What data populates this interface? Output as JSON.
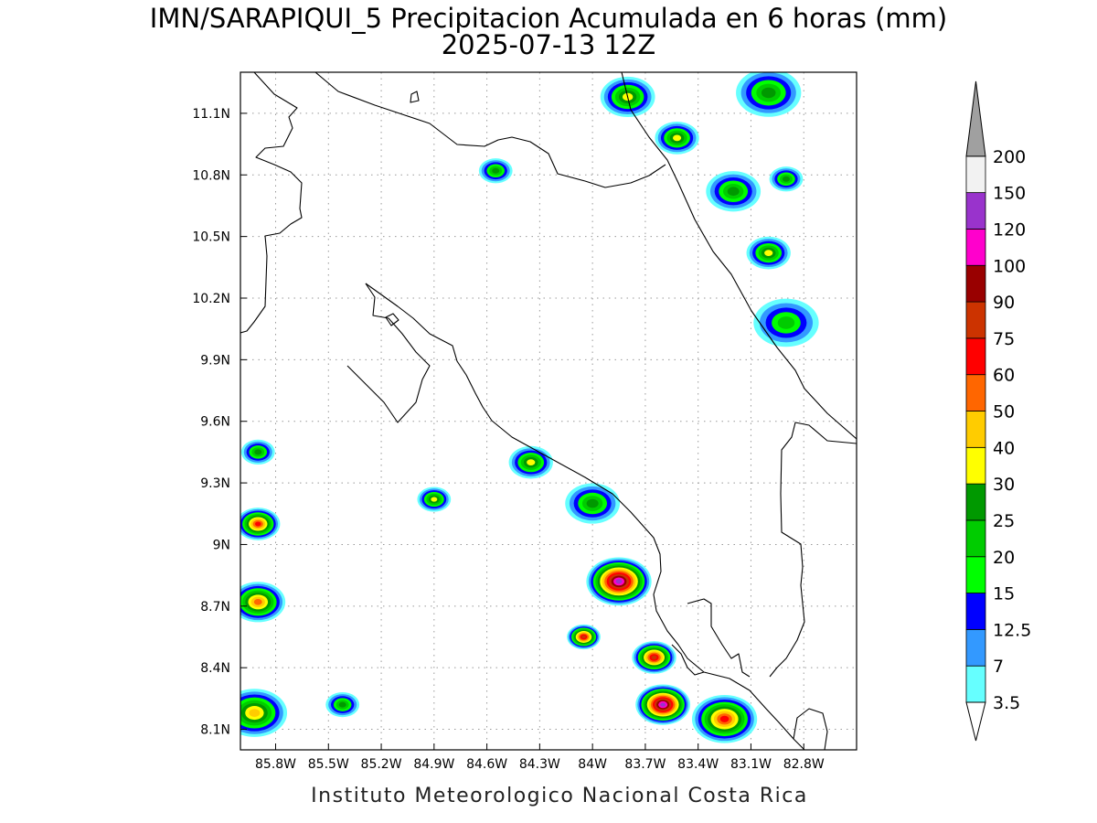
{
  "map": {
    "title": "IMN/SARAPIQUI_5 Precipitacion Acumulada en 6 horas (mm)",
    "subtitle": "2025-07-13 12Z",
    "credit": "Instituto Meteorologico Nacional Costa Rica",
    "lon_range": [
      -86.0,
      -82.5
    ],
    "lat_range": [
      8.0,
      11.3
    ],
    "gridlines": "dotted",
    "lon_ticks": [
      {
        "value": -85.8,
        "label": "85.8W"
      },
      {
        "value": -85.5,
        "label": "85.5W"
      },
      {
        "value": -85.2,
        "label": "85.2W"
      },
      {
        "value": -84.9,
        "label": "84.9W"
      },
      {
        "value": -84.6,
        "label": "84.6W"
      },
      {
        "value": -84.3,
        "label": "84.3W"
      },
      {
        "value": -84.0,
        "label": "84W"
      },
      {
        "value": -83.7,
        "label": "83.7W"
      },
      {
        "value": -83.4,
        "label": "83.4W"
      },
      {
        "value": -83.1,
        "label": "83.1W"
      },
      {
        "value": -82.8,
        "label": "82.8W"
      }
    ],
    "lat_ticks": [
      {
        "value": 11.1,
        "label": "11.1N"
      },
      {
        "value": 10.8,
        "label": "10.8N"
      },
      {
        "value": 10.5,
        "label": "10.5N"
      },
      {
        "value": 10.2,
        "label": "10.2N"
      },
      {
        "value": 9.9,
        "label": "9.9N"
      },
      {
        "value": 9.6,
        "label": "9.6N"
      },
      {
        "value": 9.3,
        "label": "9.3N"
      },
      {
        "value": 9.0,
        "label": "9N"
      },
      {
        "value": 8.7,
        "label": "8.7N"
      },
      {
        "value": 8.4,
        "label": "8.4N"
      },
      {
        "value": 8.1,
        "label": "8.1N"
      }
    ]
  },
  "colorbar": {
    "units": "mm",
    "levels": [
      {
        "label": "3.5",
        "color": "#66ffff"
      },
      {
        "label": "7",
        "color": "#3399ff"
      },
      {
        "label": "12.5",
        "color": "#0000ff"
      },
      {
        "label": "15",
        "color": "#00ff00"
      },
      {
        "label": "20",
        "color": "#00cc00"
      },
      {
        "label": "25",
        "color": "#009900"
      },
      {
        "label": "30",
        "color": "#ffff00"
      },
      {
        "label": "40",
        "color": "#ffcc00"
      },
      {
        "label": "50",
        "color": "#ff6600"
      },
      {
        "label": "60",
        "color": "#ff0000"
      },
      {
        "label": "75",
        "color": "#cc3300"
      },
      {
        "label": "90",
        "color": "#990000"
      },
      {
        "label": "100",
        "color": "#ff00cc"
      },
      {
        "label": "120",
        "color": "#9933cc"
      },
      {
        "label": "150",
        "color": "#f2f2f2"
      },
      {
        "label": "200",
        "color": "#a0a0a0"
      }
    ]
  },
  "precip_cells": [
    {
      "lon": -84.55,
      "lat": 10.82,
      "peak_mm": 25
    },
    {
      "lon": -83.52,
      "lat": 10.98,
      "peak_mm": 30
    },
    {
      "lon": -83.8,
      "lat": 11.18,
      "peak_mm": 30
    },
    {
      "lon": -83.0,
      "lat": 11.2,
      "peak_mm": 25
    },
    {
      "lon": -82.9,
      "lat": 10.78,
      "peak_mm": 25
    },
    {
      "lon": -83.0,
      "lat": 10.42,
      "peak_mm": 30
    },
    {
      "lon": -83.2,
      "lat": 10.72,
      "peak_mm": 25
    },
    {
      "lon": -82.9,
      "lat": 10.08,
      "peak_mm": 20
    },
    {
      "lon": -85.9,
      "lat": 9.45,
      "peak_mm": 25
    },
    {
      "lon": -85.9,
      "lat": 9.1,
      "peak_mm": 60
    },
    {
      "lon": -85.9,
      "lat": 8.72,
      "peak_mm": 50
    },
    {
      "lon": -85.92,
      "lat": 8.18,
      "peak_mm": 40
    },
    {
      "lon": -84.9,
      "lat": 9.22,
      "peak_mm": 30
    },
    {
      "lon": -84.35,
      "lat": 9.4,
      "peak_mm": 30
    },
    {
      "lon": -84.0,
      "lat": 9.2,
      "peak_mm": 25
    },
    {
      "lon": -83.85,
      "lat": 8.82,
      "peak_mm": 120
    },
    {
      "lon": -84.05,
      "lat": 8.55,
      "peak_mm": 75
    },
    {
      "lon": -83.65,
      "lat": 8.45,
      "peak_mm": 75
    },
    {
      "lon": -83.6,
      "lat": 8.22,
      "peak_mm": 120
    },
    {
      "lon": -83.25,
      "lat": 8.15,
      "peak_mm": 60
    },
    {
      "lon": -85.42,
      "lat": 8.22,
      "peak_mm": 25
    }
  ]
}
